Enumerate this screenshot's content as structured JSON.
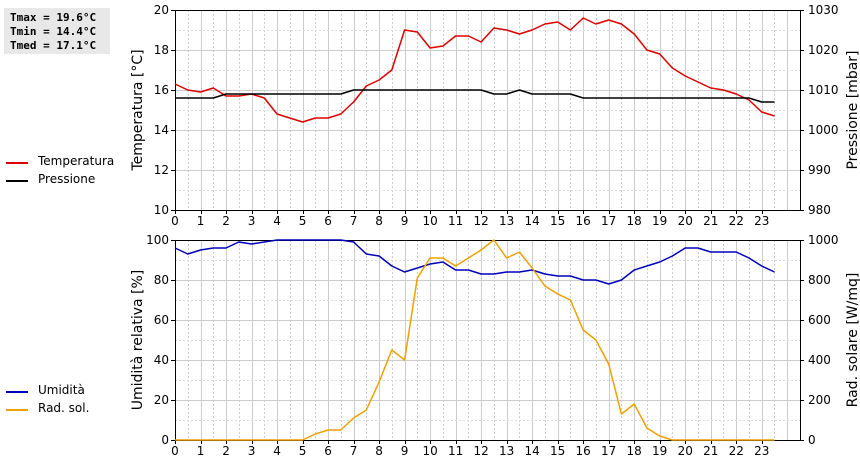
{
  "stats": {
    "tmax": "Tmax = 19.6°C",
    "tmin": "Tmin = 14.4°C",
    "tmed": "Tmed = 17.1°C"
  },
  "legend_top": [
    {
      "label": "Temperatura",
      "color": "#dd0000"
    },
    {
      "label": "Pressione",
      "color": "#000000"
    }
  ],
  "legend_bottom": [
    {
      "label": "Umidità",
      "color": "#0000bb"
    },
    {
      "label": "Rad. sol.",
      "color": "#f0a000"
    }
  ],
  "chart_data": [
    {
      "type": "line",
      "ylabel": "Temperatura [°C]",
      "y2label": "Pressione [mbar]",
      "ylim": [
        10,
        20
      ],
      "y2lim": [
        980,
        1030
      ],
      "yticks": [
        10,
        12,
        14,
        16,
        18,
        20
      ],
      "y2ticks": [
        980,
        990,
        1000,
        1010,
        1020,
        1030
      ],
      "xlim": [
        0,
        24.5
      ],
      "xticks": [
        0,
        1,
        2,
        3,
        4,
        5,
        6,
        7,
        8,
        9,
        10,
        11,
        12,
        13,
        14,
        15,
        16,
        17,
        18,
        19,
        20,
        21,
        22,
        23
      ],
      "grid": true,
      "x": [
        0,
        0.5,
        1,
        1.5,
        2,
        2.5,
        3,
        3.5,
        4,
        4.5,
        5,
        5.5,
        6,
        6.5,
        7,
        7.5,
        8,
        8.5,
        9,
        9.5,
        10,
        10.5,
        11,
        11.5,
        12,
        12.5,
        13,
        13.5,
        14,
        14.5,
        15,
        15.5,
        16,
        16.5,
        17,
        17.5,
        18,
        18.5,
        19,
        19.5,
        20,
        20.5,
        21,
        21.5,
        22,
        22.5,
        23,
        23.5
      ],
      "series": [
        {
          "name": "Temperatura",
          "axis": "left",
          "color": "#dd0000",
          "values": [
            16.3,
            16.0,
            15.9,
            16.1,
            15.7,
            15.7,
            15.8,
            15.6,
            14.8,
            14.6,
            14.4,
            14.6,
            14.6,
            14.8,
            15.4,
            16.2,
            16.5,
            17.0,
            19.0,
            18.9,
            18.1,
            18.2,
            18.7,
            18.7,
            18.4,
            19.1,
            19.0,
            18.8,
            19.0,
            19.3,
            19.4,
            19.0,
            19.6,
            19.3,
            19.5,
            19.3,
            18.8,
            18.0,
            17.8,
            17.1,
            16.7,
            16.4,
            16.1,
            16.0,
            15.8,
            15.5,
            14.9,
            14.7
          ]
        },
        {
          "name": "Pressione",
          "axis": "right",
          "color": "#000000",
          "values": [
            1008,
            1008,
            1008,
            1008,
            1009,
            1009,
            1009,
            1009,
            1009,
            1009,
            1009,
            1009,
            1009,
            1009,
            1010,
            1010,
            1010,
            1010,
            1010,
            1010,
            1010,
            1010,
            1010,
            1010,
            1010,
            1009,
            1009,
            1010,
            1009,
            1009,
            1009,
            1009,
            1008,
            1008,
            1008,
            1008,
            1008,
            1008,
            1008,
            1008,
            1008,
            1008,
            1008,
            1008,
            1008,
            1008,
            1007,
            1007
          ]
        }
      ]
    },
    {
      "type": "line",
      "ylabel": "Umidità relativa [%]",
      "y2label": "Rad. solare [W/mq]",
      "ylim": [
        0,
        100
      ],
      "y2lim": [
        0,
        1000
      ],
      "yticks": [
        0,
        20,
        40,
        60,
        80,
        100
      ],
      "y2ticks": [
        0,
        200,
        400,
        600,
        800,
        1000
      ],
      "xlim": [
        0,
        24.5
      ],
      "xticks": [
        0,
        1,
        2,
        3,
        4,
        5,
        6,
        7,
        8,
        9,
        10,
        11,
        12,
        13,
        14,
        15,
        16,
        17,
        18,
        19,
        20,
        21,
        22,
        23
      ],
      "grid": true,
      "x": [
        0,
        0.5,
        1,
        1.5,
        2,
        2.5,
        3,
        3.5,
        4,
        4.5,
        5,
        5.5,
        6,
        6.5,
        7,
        7.5,
        8,
        8.5,
        9,
        9.5,
        10,
        10.5,
        11,
        11.5,
        12,
        12.5,
        13,
        13.5,
        14,
        14.5,
        15,
        15.5,
        16,
        16.5,
        17,
        17.5,
        18,
        18.5,
        19,
        19.5,
        20,
        20.5,
        21,
        21.5,
        22,
        22.5,
        23,
        23.5
      ],
      "series": [
        {
          "name": "Umidità",
          "axis": "left",
          "color": "#0000bb",
          "values": [
            96,
            93,
            95,
            96,
            96,
            99,
            98,
            99,
            100,
            100,
            100,
            100,
            100,
            100,
            99,
            93,
            92,
            87,
            84,
            86,
            88,
            89,
            85,
            85,
            83,
            83,
            84,
            84,
            85,
            83,
            82,
            82,
            80,
            80,
            78,
            80,
            85,
            87,
            89,
            92,
            96,
            96,
            94,
            94,
            94,
            91,
            87,
            84
          ]
        },
        {
          "name": "Rad. sol.",
          "axis": "right",
          "color": "#f0a000",
          "values": [
            0,
            0,
            0,
            0,
            0,
            0,
            0,
            0,
            0,
            0,
            0,
            30,
            50,
            50,
            110,
            150,
            290,
            450,
            400,
            810,
            910,
            910,
            870,
            910,
            950,
            1010,
            910,
            940,
            860,
            770,
            730,
            700,
            550,
            500,
            380,
            130,
            180,
            60,
            20,
            0,
            0,
            0,
            0,
            0,
            0,
            0,
            0,
            0
          ]
        }
      ]
    }
  ]
}
